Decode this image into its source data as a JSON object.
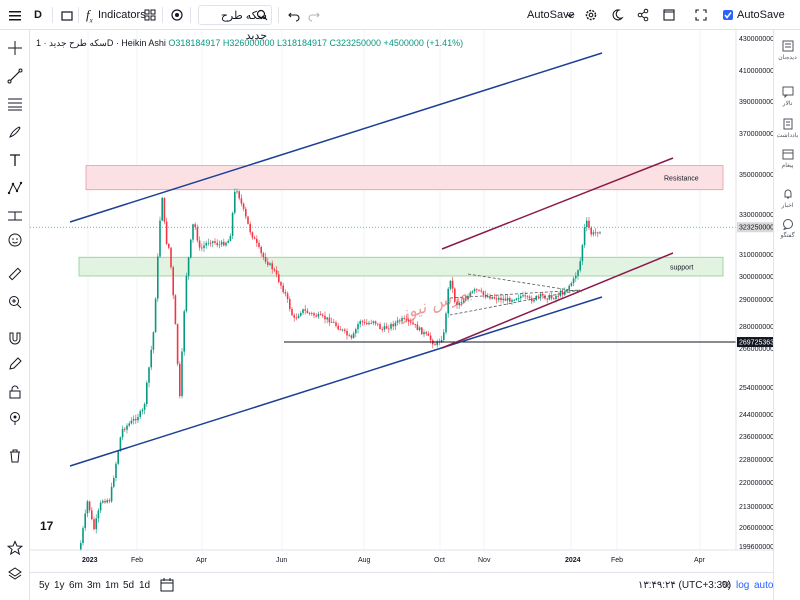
{
  "toolbar": {
    "symbol_short": "D",
    "indicators_label": "Indicators",
    "layout_name": "سکه طرح جدید",
    "autosave_label": "AutoSave",
    "autosave_checkbox_label": "AutoSave",
    "autosave_checked": true
  },
  "legend": {
    "title": "سکه طرح جدید · 1D · Heikin Ashi",
    "ohlc": "O318184917 H326000000 L318184917 C323250000 +4500000 (+1.41%)"
  },
  "right_sidebar": {
    "items": [
      {
        "label": "دیده‌بان",
        "icon": "list-icon"
      },
      {
        "label": "تالار",
        "icon": "chat-icon"
      },
      {
        "label": "یادداشت",
        "icon": "notes-icon"
      },
      {
        "label": "پیغام",
        "icon": "calendar-icon"
      },
      {
        "label": "اخبار",
        "icon": "bell-icon"
      },
      {
        "label": "گفتگو",
        "icon": "chat-bubble-icon"
      }
    ]
  },
  "drawings": {
    "resistance_label": "Resistance",
    "support_label": "support",
    "watermark": "بورس نیوز"
  },
  "chart_data": {
    "type": "candlestick",
    "title": "سکه طرح جدید · 1D · Heikin Ashi",
    "y_ticks": [
      430000000,
      410000000,
      390000000,
      370000000,
      350000000,
      330000000,
      310000000,
      300000000,
      290000000,
      280000000,
      266000000,
      254000000,
      244000000,
      236000000,
      228000000,
      220000000,
      213000000,
      206000000,
      199600000
    ],
    "y_tick_labels": [
      "430000000",
      "410000000",
      "390000000",
      "370000000",
      "350000000",
      "330000000",
      "310000000",
      "300000000",
      "290000000",
      "280000000",
      "266000000",
      "254000000",
      "244000000",
      "236000000",
      "228000000",
      "220000000",
      "213000000",
      "206000000",
      "199600000"
    ],
    "x_tick_labels": [
      "2023",
      "Feb",
      "Apr",
      "Jun",
      "Aug",
      "Oct",
      "Nov",
      "2024",
      "Feb",
      "Apr"
    ],
    "last_price_label": "323250000",
    "horizontal_line_label": "269725363",
    "last_price": 323250000,
    "horizontal_line_price": 269725363,
    "resistance_zone": [
      342000000,
      354000000
    ],
    "support_zone": [
      300000000,
      308500000
    ]
  },
  "bottom": {
    "ranges": [
      "5y",
      "1y",
      "6m",
      "3m",
      "1m",
      "5d",
      "1d"
    ],
    "clock": "۱۳:۴۹:۲۴ (UTC+3:30)",
    "percent_label": "%",
    "log_label": "log",
    "auto_label": "auto"
  },
  "colors": {
    "up": "#089981",
    "down": "#f23645",
    "trend_blue": "#1c3f95",
    "trend_purple": "#8a1a4a",
    "resistance_fill": "#fbe0e4",
    "support_fill": "#e2f3e2"
  }
}
